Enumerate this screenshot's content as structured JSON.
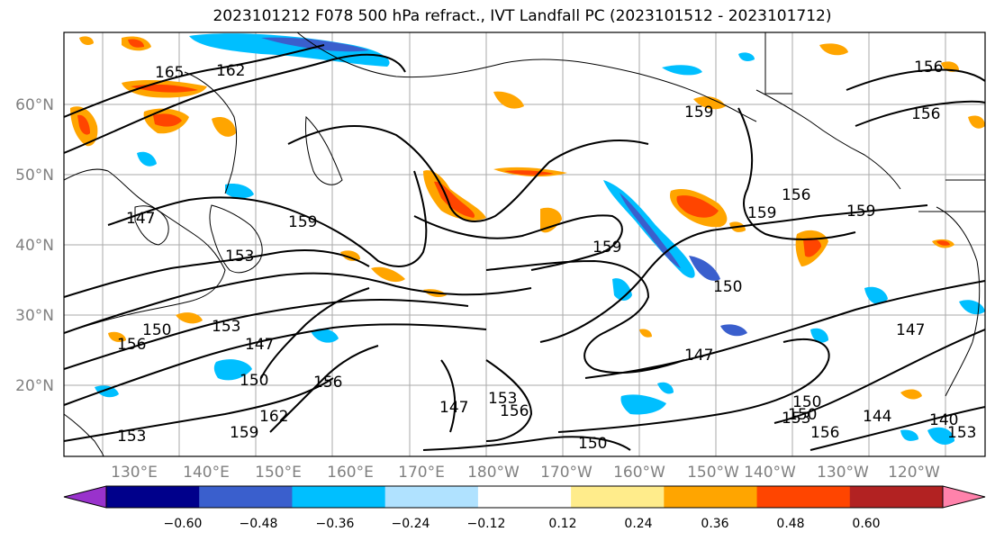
{
  "title": "2023101212 F078 500 hPa refract., IVT Landfall PC (2023101512 - 2023101712)",
  "lat_labels": [
    "60°N",
    "50°N",
    "40°N",
    "30°N",
    "20°N"
  ],
  "lon_labels": [
    "130°E",
    "140°E",
    "150°E",
    "160°E",
    "170°E",
    "180°W",
    "170°W",
    "160°W",
    "150°W",
    "140°W",
    "130°W",
    "120°W"
  ],
  "contour_labels": [
    "165",
    "162",
    "156",
    "156",
    "159",
    "159",
    "159",
    "156",
    "159",
    "159",
    "153",
    "153",
    "150",
    "156",
    "150",
    "147",
    "150",
    "147",
    "147",
    "156",
    "150",
    "162",
    "159",
    "153",
    "147",
    "153",
    "156",
    "150",
    "153",
    "150",
    "144",
    "156",
    "140",
    "153",
    "147"
  ],
  "colorbar": {
    "ticks": [
      "−0.60",
      "−0.48",
      "−0.36",
      "−0.24",
      "−0.12",
      "0.12",
      "0.24",
      "0.36",
      "0.48",
      "0.60"
    ],
    "colors": [
      "#9932cc",
      "#00008b",
      "#3a5fcd",
      "#00bfff",
      "#b0e2ff",
      "#ffffff",
      "#ffec8b",
      "#ffa500",
      "#ff4500",
      "#b22222",
      "#ff82ab"
    ]
  },
  "colors": {
    "positive": [
      "#ffec8b",
      "#ffa500",
      "#ff4500"
    ],
    "negative": [
      "#b0e2ff",
      "#00bfff",
      "#3a5fcd"
    ],
    "grid": "#aaaaaa"
  }
}
